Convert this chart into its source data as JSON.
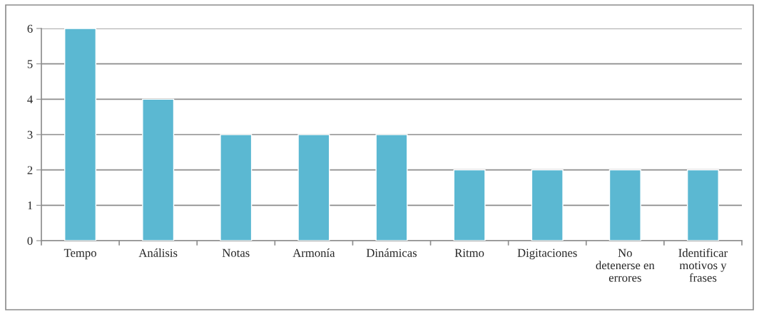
{
  "chart_data": {
    "type": "bar",
    "categories": [
      "Tempo",
      "Análisis",
      "Notas",
      "Armonía",
      "Dinámicas",
      "Ritmo",
      "Digitaciones",
      "No\ndetenerse en\nerrores",
      "Identificar\nmotivos y\nfrases"
    ],
    "values": [
      6,
      4,
      3,
      3,
      3,
      2,
      2,
      2,
      2
    ],
    "color": "#5bb8d2",
    "ylim": [
      0,
      6
    ],
    "yticks": [
      0,
      1,
      2,
      3,
      4,
      5,
      6
    ],
    "grid": "y"
  }
}
